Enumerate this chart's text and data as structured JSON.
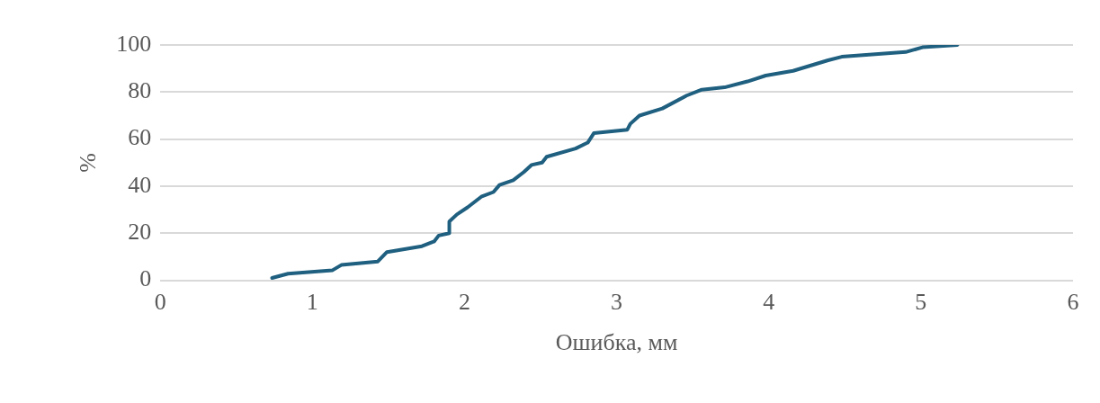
{
  "chart_data": {
    "type": "line",
    "xlabel": "Ошибка, мм",
    "ylabel": "%",
    "xlim": [
      0,
      6
    ],
    "xticks": [
      0,
      1,
      2,
      3,
      4,
      5,
      6
    ],
    "ylim": [
      0,
      100
    ],
    "yticks": [
      0,
      20,
      40,
      60,
      80,
      100
    ],
    "grid": "y",
    "legend": false,
    "marker": "none",
    "line_style": "solid",
    "series": [
      {
        "color": "#1f5f7f",
        "x": [
          0.735,
          0.84,
          1.13,
          1.19,
          1.43,
          1.49,
          1.72,
          1.8,
          1.83,
          1.9,
          1.9,
          1.95,
          2.02,
          2.11,
          2.19,
          2.23,
          2.32,
          2.39,
          2.44,
          2.51,
          2.54,
          2.73,
          2.81,
          2.85,
          3.07,
          3.09,
          3.15,
          3.3,
          3.46,
          3.56,
          3.71,
          3.86,
          3.98,
          4.16,
          4.39,
          4.48,
          4.9,
          5.01,
          5.24
        ],
        "values": [
          1,
          2.8,
          4.2,
          6.5,
          8,
          12,
          14.5,
          16.5,
          19,
          20,
          25,
          28,
          31,
          35.5,
          37.5,
          40.5,
          42.5,
          46,
          49,
          50,
          52.5,
          56,
          58.5,
          62.5,
          64,
          66.5,
          70,
          73,
          78.5,
          81,
          82,
          84.5,
          87,
          89,
          93.5,
          95,
          97,
          99,
          100
        ]
      }
    ]
  }
}
